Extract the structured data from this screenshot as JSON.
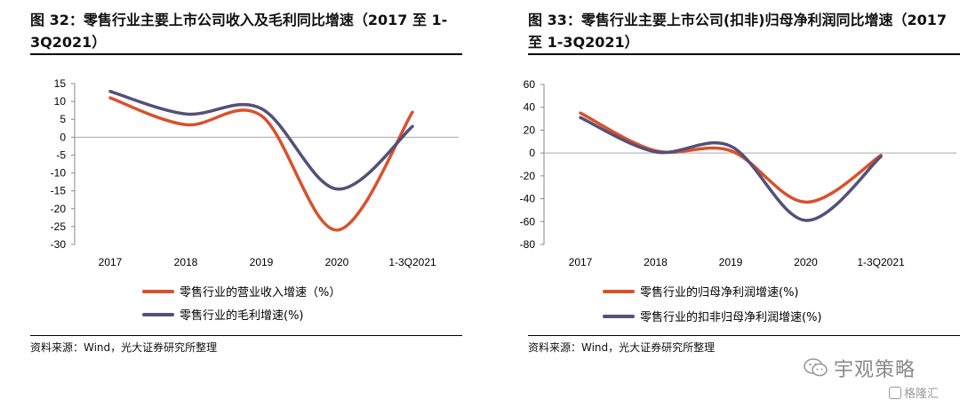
{
  "charts": [
    {
      "title": "图 32：零售行业主要上市公司收入及毛利同比增速（2017 至 1-3Q2021）",
      "source": "资料来源：Wind，光大证券研究所整理"
    },
    {
      "title": "图 33：零售行业主要上市公司(扣非)归母净利润同比增速（2017 至 1-3Q2021）",
      "source": "资料来源：Wind，光大证券研究所整理"
    }
  ],
  "chart_data": [
    {
      "type": "line",
      "title": "图 32：零售行业主要上市公司收入及毛利同比增速（2017 至 1-3Q2021）",
      "categories": [
        "2017",
        "2018",
        "2019",
        "2020",
        "1-3Q2021"
      ],
      "yticks": [
        "15",
        "10",
        "5",
        "0",
        "-5",
        "-10",
        "-15",
        "-20",
        "-25",
        "-30"
      ],
      "ylim": [
        -30,
        15
      ],
      "smooth": true,
      "legend_position": "bottom",
      "series": [
        {
          "name": "零售行业的营业收入增速（%）",
          "color": "#d9512c",
          "values": [
            11,
            3.5,
            6,
            -26,
            7
          ]
        },
        {
          "name": "零售行业的毛利增速(%)",
          "color": "#545079",
          "values": [
            12.8,
            6.5,
            8,
            -14.5,
            3
          ]
        }
      ]
    },
    {
      "type": "line",
      "title": "图 33：零售行业主要上市公司(扣非)归母净利润同比增速（2017 至 1-3Q2021）",
      "categories": [
        "2017",
        "2018",
        "2019",
        "2020",
        "1-3Q2021"
      ],
      "yticks": [
        "60",
        "40",
        "20",
        "0",
        "-20",
        "-40",
        "-60",
        "-80"
      ],
      "ylim": [
        -80,
        60
      ],
      "smooth": true,
      "legend_position": "bottom",
      "series": [
        {
          "name": "零售行业的归母净利润增速(%)",
          "color": "#d9512c",
          "values": [
            35,
            2,
            2,
            -43,
            -2
          ]
        },
        {
          "name": "零售行业的扣非归母净利润增速(%)",
          "color": "#545079",
          "values": [
            31,
            1,
            6,
            -59,
            -3
          ]
        }
      ]
    }
  ],
  "watermark": {
    "text": "宇观策略",
    "icon": "wechat-icon"
  },
  "corner_mark": {
    "text": "格隆汇",
    "icon": "gelonghui-logo-icon"
  }
}
